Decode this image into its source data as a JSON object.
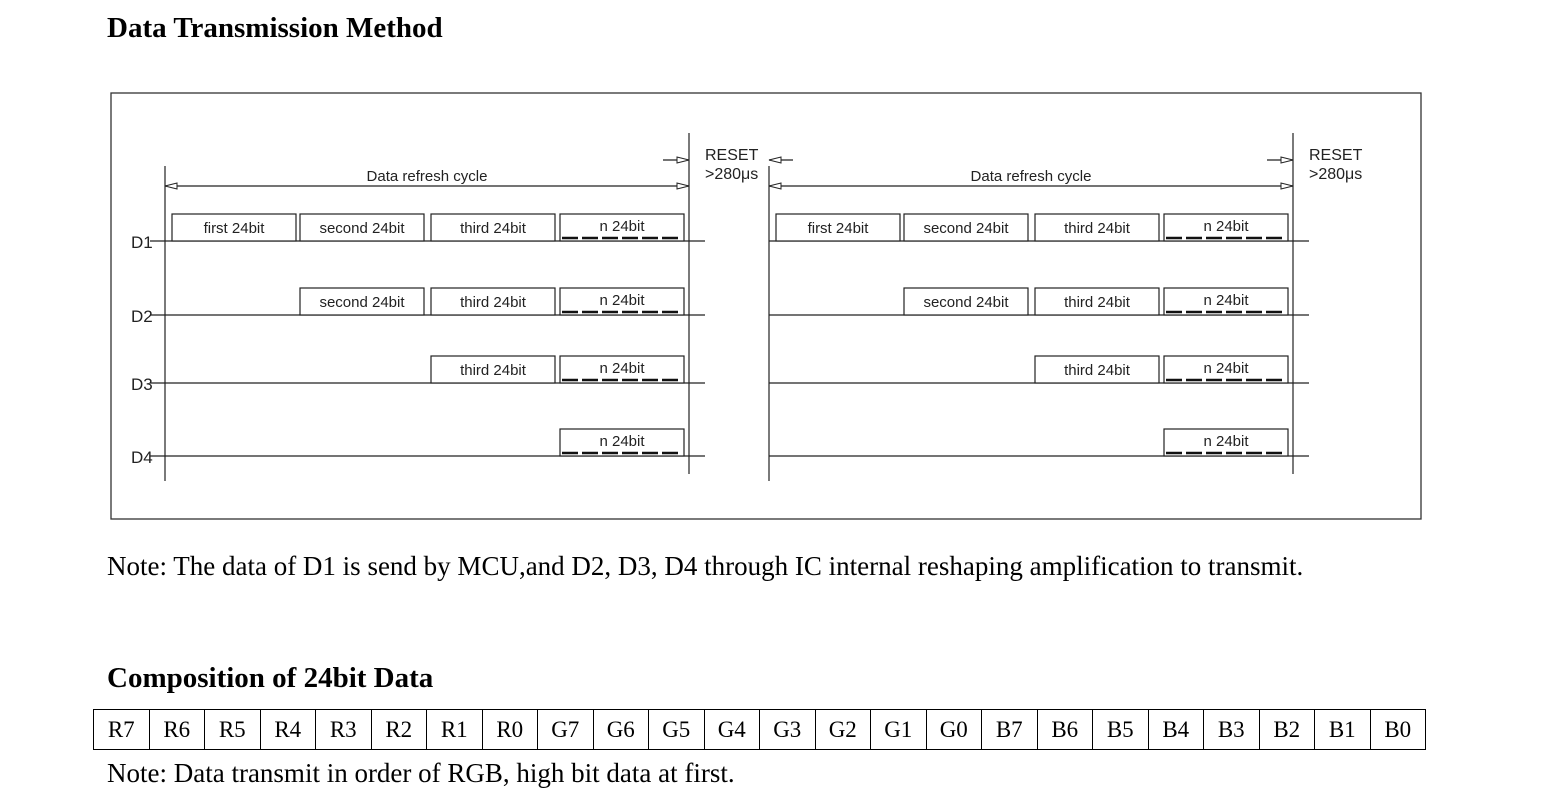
{
  "title": "Data Transmission Method",
  "diagram": {
    "cycle_label": "Data refresh cycle",
    "reset_label": "RESET",
    "reset_time": ">280μs",
    "lines": [
      "D1",
      "D2",
      "D3",
      "D4"
    ],
    "blocks": {
      "first": "first 24bit",
      "second": "second 24bit",
      "third": "third 24bit",
      "n": "n 24bit"
    }
  },
  "note1": "Note: The data of D1 is send by MCU,and D2, D3, D4 through IC internal reshaping amplification to transmit.",
  "composition_title": "Composition of 24bit Data",
  "bits": [
    "R7",
    "R6",
    "R5",
    "R4",
    "R3",
    "R2",
    "R1",
    "R0",
    "G7",
    "G6",
    "G5",
    "G4",
    "G3",
    "G2",
    "G1",
    "G0",
    "B7",
    "B6",
    "B5",
    "B4",
    "B3",
    "B2",
    "B1",
    "B0"
  ],
  "note2": "Note: Data transmit in order of RGB, high bit data at first."
}
